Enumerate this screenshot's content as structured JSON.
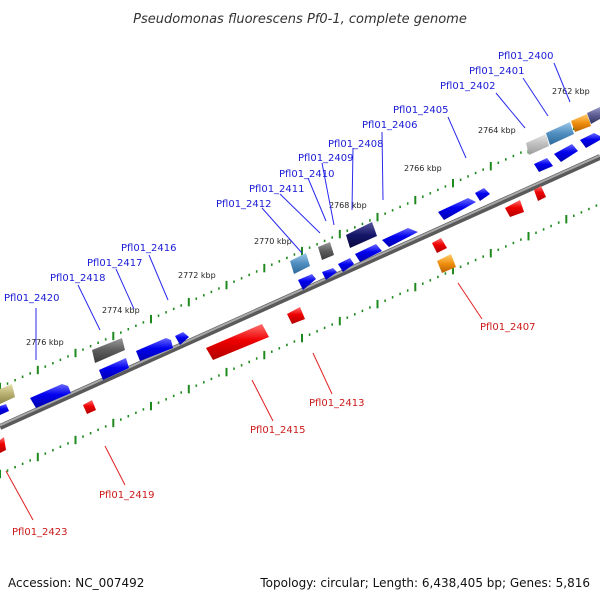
{
  "title": "Pseudomonas fluorescens Pf0-1, complete genome",
  "footer": {
    "accession": "Accession: NC_007492",
    "topology": "Topology: circular; Length: 6,438,405 bp; Genes: 5,816"
  },
  "kbp_labels": [
    "2762 kbp",
    "2764 kbp",
    "2766 kbp",
    "2768 kbp",
    "2770 kbp",
    "2772 kbp",
    "2774 kbp",
    "2776 kbp"
  ],
  "forward_genes": [
    "Pfl01_2400",
    "Pfl01_2401",
    "Pfl01_2402",
    "Pfl01_2405",
    "Pfl01_2406",
    "Pfl01_2408",
    "Pfl01_2409",
    "Pfl01_2410",
    "Pfl01_2411",
    "Pfl01_2412",
    "Pfl01_2416",
    "Pfl01_2417",
    "Pfl01_2418",
    "Pfl01_2420"
  ],
  "reverse_genes": [
    "Pfl01_2407",
    "Pfl01_2413",
    "Pfl01_2415",
    "Pfl01_2419",
    "Pfl01_2423"
  ],
  "colors": {
    "forward_strand": "#0000ee",
    "reverse_strand": "#ee0000",
    "ruler_ticks": "#1e8a1e",
    "backbone": "#808080",
    "label_forward": "#1a1ad6",
    "label_reverse": "#cc1a1a"
  }
}
